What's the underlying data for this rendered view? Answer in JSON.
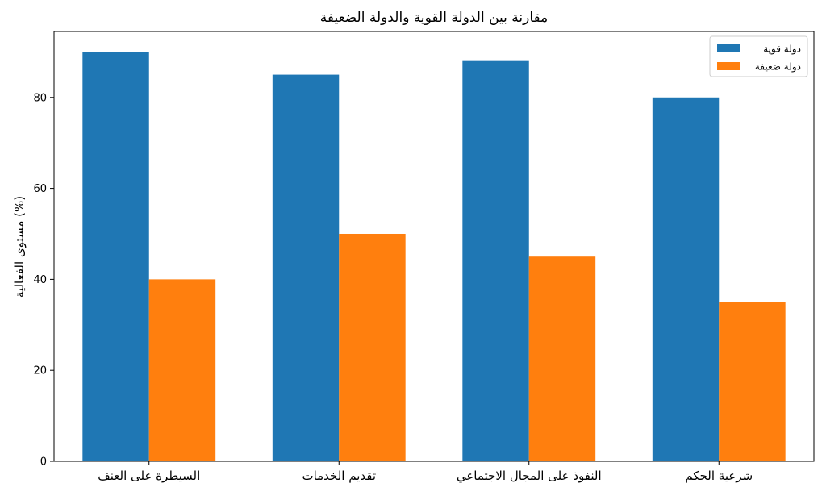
{
  "chart_data": {
    "type": "bar",
    "title": "مقارنة بين الدولة القوية والدولة الضعيفة",
    "ylabel": "مستوى الفعالية (%)",
    "xlabel": "",
    "categories": [
      "السيطرة على العنف",
      "تقديم الخدمات",
      "النفوذ على المجال الاجتماعي",
      "شرعية الحكم"
    ],
    "series": [
      {
        "name": "دولة قوية",
        "values": [
          90,
          85,
          88,
          80
        ],
        "color": "#1f77b4"
      },
      {
        "name": "دولة ضعيفة",
        "values": [
          40,
          50,
          45,
          35
        ],
        "color": "#ff7f0e"
      }
    ],
    "ylim": [
      0,
      94.5
    ],
    "yticks": [
      0,
      20,
      40,
      60,
      80
    ],
    "grid": false,
    "legend_position": "top-right"
  }
}
